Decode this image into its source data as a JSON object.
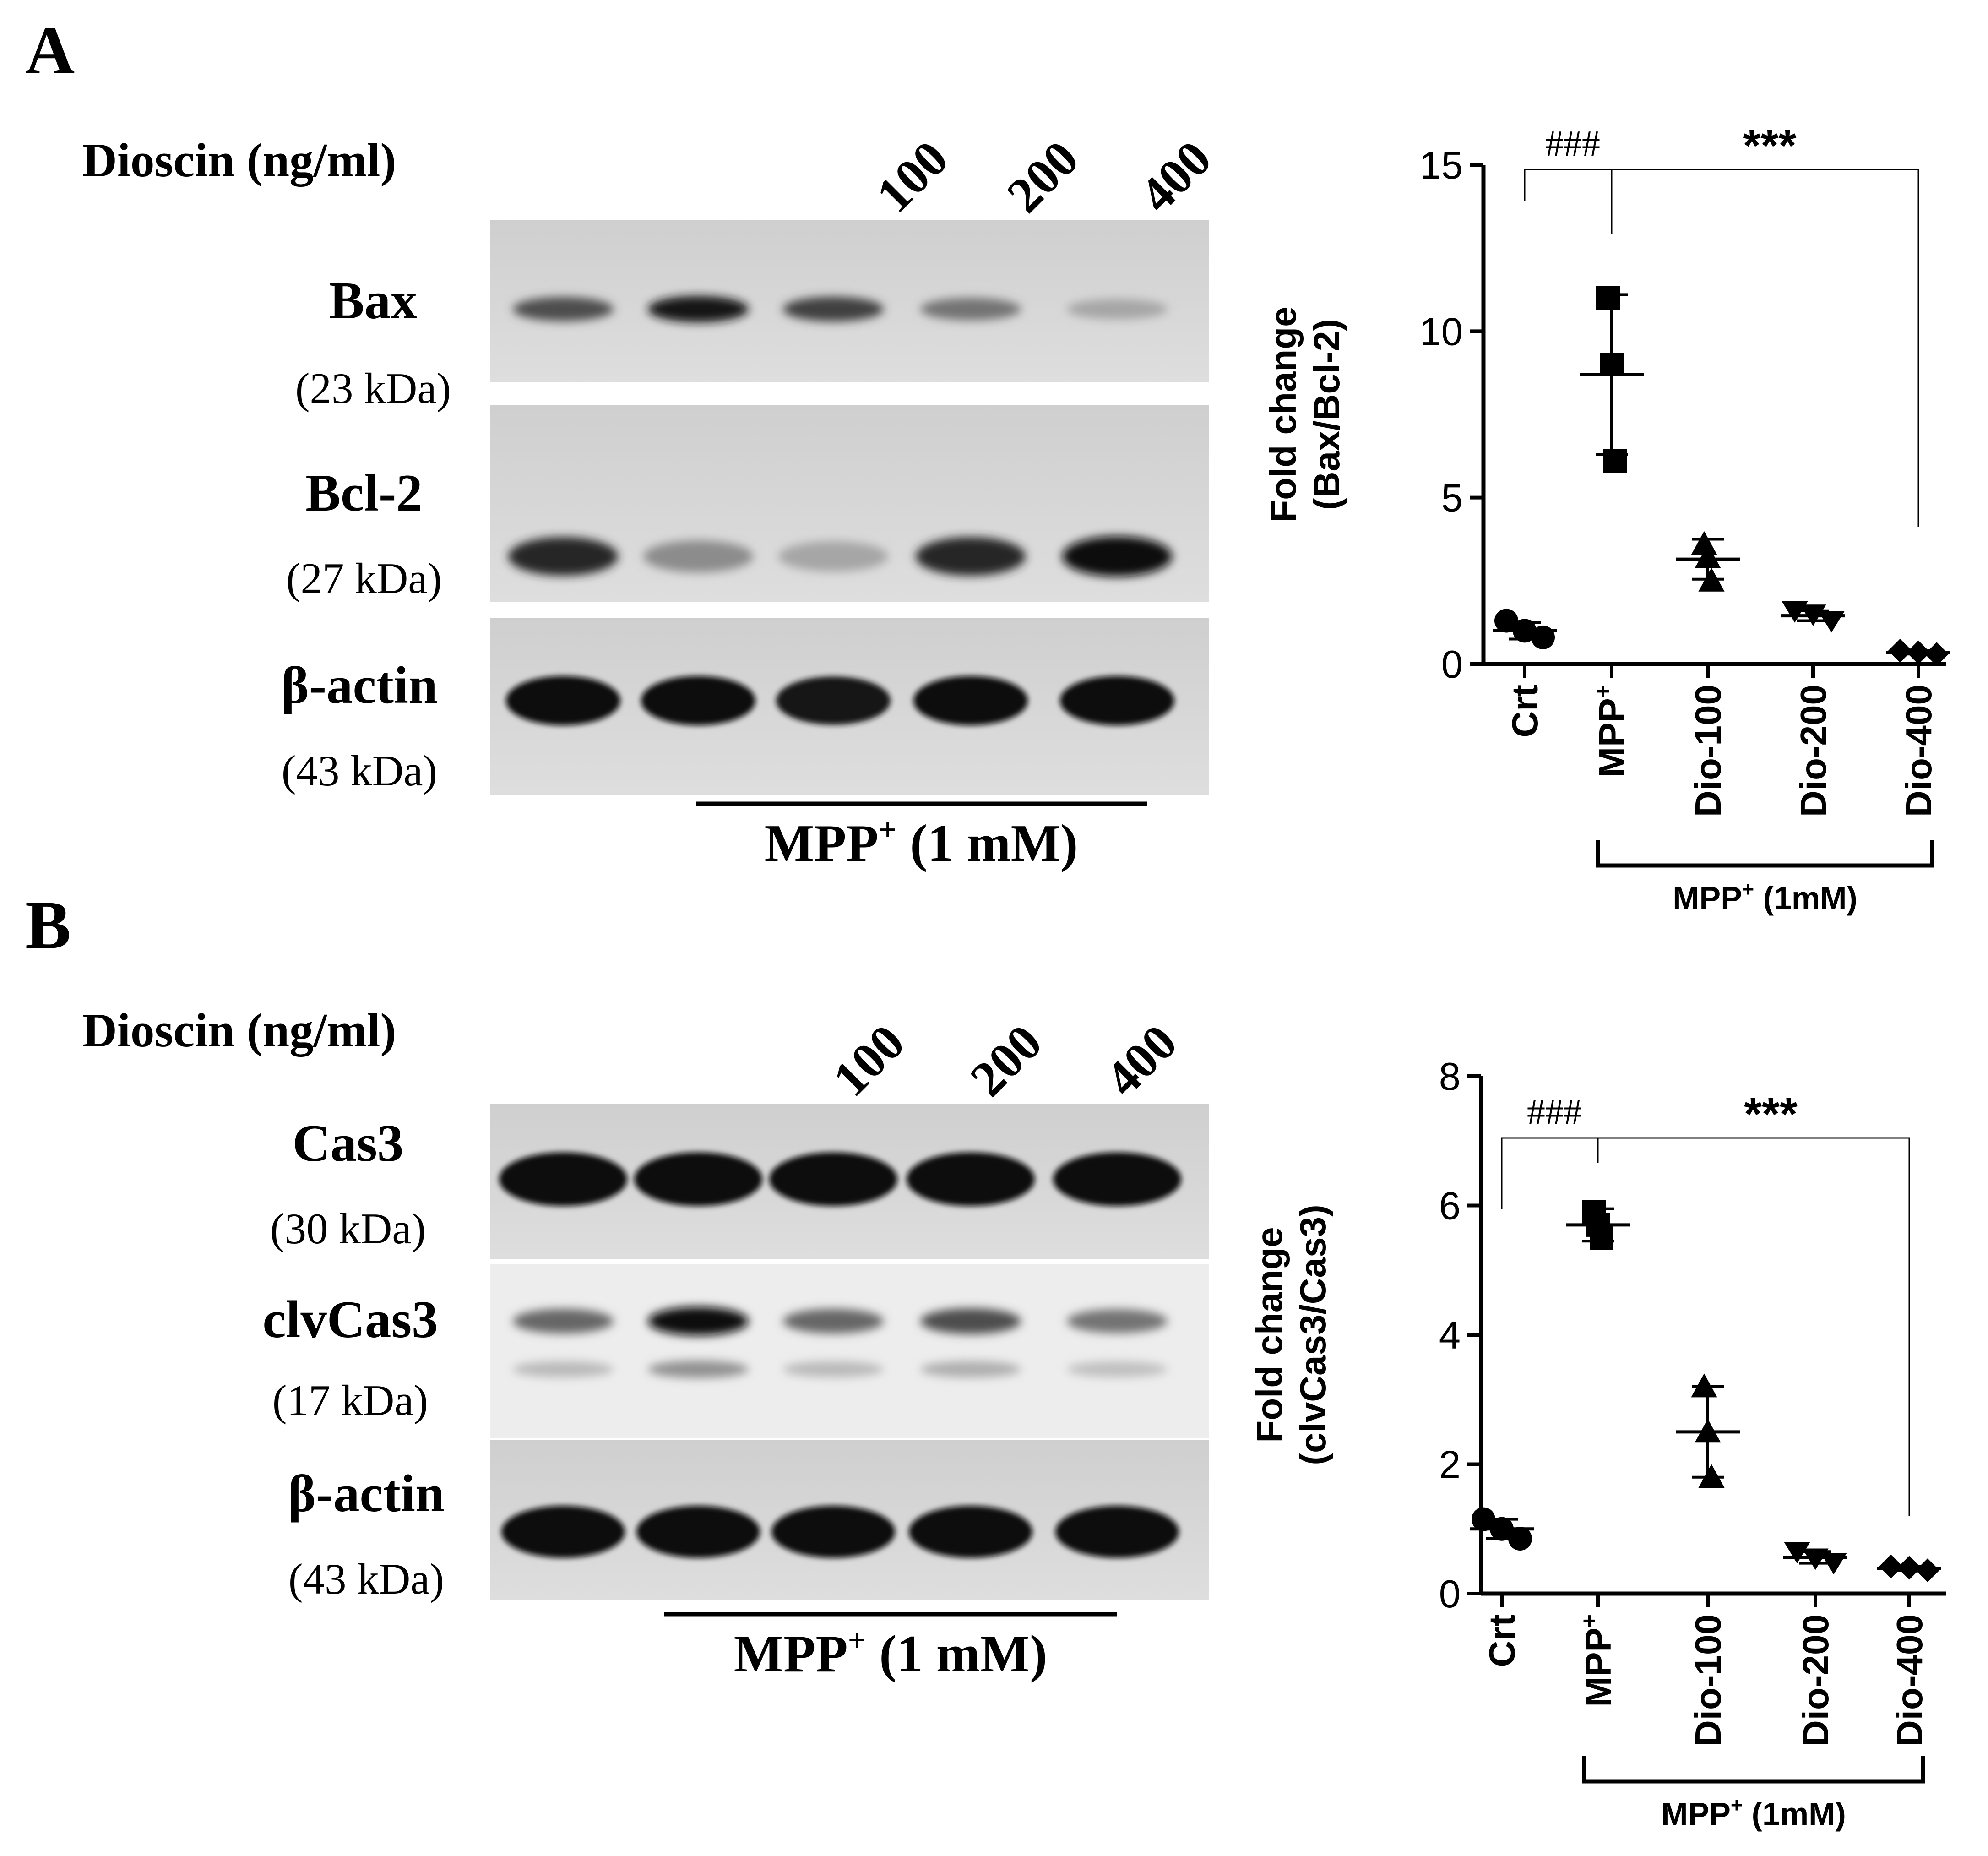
{
  "panel_a": {
    "letter": "A",
    "blot": {
      "dioscin_label": "Dioscin (ng/ml)",
      "doses": [
        "100",
        "200",
        "400"
      ],
      "rows": [
        {
          "protein": "Bax",
          "kda": "(23 kDa)"
        },
        {
          "protein": "Bcl-2",
          "kda": "(27 kDa)"
        },
        {
          "protein": "β-actin",
          "kda": "(43 kDa)"
        }
      ],
      "treatment": {
        "main": "MPP",
        "sup": "+",
        "rest": " (1 mM)"
      },
      "lane_band_intensity": {
        "Bax": [
          0.7,
          0.9,
          0.75,
          0.55,
          0.35
        ],
        "Bcl-2": [
          0.85,
          0.45,
          0.35,
          0.85,
          0.95
        ],
        "β-actin": [
          0.95,
          0.95,
          0.9,
          0.95,
          0.95
        ]
      }
    }
  },
  "panel_b": {
    "letter": "B",
    "blot": {
      "dioscin_label": "Dioscin (ng/ml)",
      "doses": [
        "100",
        "200",
        "400"
      ],
      "rows": [
        {
          "protein": "Cas3",
          "kda": "(30 kDa)"
        },
        {
          "protein": "clvCas3",
          "kda": "(17 kDa)"
        },
        {
          "protein": "β-actin",
          "kda": "(43 kDa)"
        }
      ],
      "treatment": {
        "main": "MPP",
        "sup": "+",
        "rest": " (1 mM)"
      },
      "lane_band_intensity": {
        "Cas3": [
          0.95,
          0.95,
          0.95,
          0.95,
          0.95
        ],
        "clvCas3": [
          0.6,
          0.95,
          0.6,
          0.7,
          0.55
        ],
        "β-actin": [
          0.95,
          0.95,
          0.95,
          0.95,
          0.95
        ]
      }
    }
  },
  "chart_data": [
    {
      "type": "scatter",
      "panel": "A",
      "categories": [
        "Crt",
        "MPP+",
        "Dio-100",
        "Dio-200",
        "Dio-400"
      ],
      "category_labels": [
        {
          "main": "Crt",
          "sup": ""
        },
        {
          "main": "MPP",
          "sup": "+"
        },
        {
          "main": "Dio-100",
          "sup": ""
        },
        {
          "main": "Dio-200",
          "sup": ""
        },
        {
          "main": "Dio-400",
          "sup": ""
        }
      ],
      "ylabel_line1": "Fold change",
      "ylabel_line2": "(Bax/Bcl-2)",
      "ylim": [
        0,
        15
      ],
      "yticks": [
        "0",
        "5",
        "10",
        "15"
      ],
      "group_bracket": {
        "main": "MPP",
        "sup": "+",
        "rest": " (1mM)"
      },
      "significance": {
        "hash": "###",
        "stars": "***"
      },
      "points": [
        {
          "category": "Crt",
          "marker": "circle",
          "values": [
            1.3,
            1.0,
            0.8
          ]
        },
        {
          "category": "MPP+",
          "marker": "square",
          "values": [
            11.0,
            9.0,
            6.1
          ]
        },
        {
          "category": "Dio-100",
          "marker": "triangle-up",
          "values": [
            3.6,
            3.2,
            2.5
          ]
        },
        {
          "category": "Dio-200",
          "marker": "triangle-down",
          "values": [
            1.6,
            1.5,
            1.3
          ]
        },
        {
          "category": "Dio-400",
          "marker": "diamond",
          "values": [
            0.4,
            0.35,
            0.3
          ]
        }
      ],
      "mean_sd": [
        {
          "category": "Crt",
          "mean": 1.0,
          "sd": 0.25
        },
        {
          "category": "MPP+",
          "mean": 8.7,
          "sd": 2.4
        },
        {
          "category": "Dio-100",
          "mean": 3.15,
          "sd": 0.6
        },
        {
          "category": "Dio-200",
          "mean": 1.45,
          "sd": 0.15
        },
        {
          "category": "Dio-400",
          "mean": 0.35,
          "sd": 0.05
        }
      ],
      "grid": false
    },
    {
      "type": "scatter",
      "panel": "B",
      "categories": [
        "Crt",
        "MPP+",
        "Dio-100",
        "Dio-200",
        "Dio-400"
      ],
      "category_labels": [
        {
          "main": "Crt",
          "sup": ""
        },
        {
          "main": "MPP",
          "sup": "+"
        },
        {
          "main": "Dio-100",
          "sup": ""
        },
        {
          "main": "Dio-200",
          "sup": ""
        },
        {
          "main": "Dio-400",
          "sup": ""
        }
      ],
      "ylabel_line1": "Fold change",
      "ylabel_line2": "(clvCas3/Cas3)",
      "ylim": [
        0,
        8
      ],
      "yticks": [
        "0",
        "2",
        "4",
        "6",
        "8"
      ],
      "group_bracket": {
        "main": "MPP",
        "sup": "+",
        "rest": " (1mM)"
      },
      "significance": {
        "hash": "###",
        "stars": "***"
      },
      "points": [
        {
          "category": "Crt",
          "marker": "circle",
          "values": [
            1.15,
            1.0,
            0.85
          ]
        },
        {
          "category": "MPP+",
          "marker": "square",
          "values": [
            5.9,
            5.7,
            5.5
          ]
        },
        {
          "category": "Dio-100",
          "marker": "triangle-up",
          "values": [
            3.2,
            2.5,
            1.8
          ]
        },
        {
          "category": "Dio-200",
          "marker": "triangle-down",
          "values": [
            0.65,
            0.55,
            0.48
          ]
        },
        {
          "category": "Dio-400",
          "marker": "diamond",
          "values": [
            0.42,
            0.4,
            0.36
          ]
        }
      ],
      "mean_sd": [
        {
          "category": "Crt",
          "mean": 1.0,
          "sd": 0.15
        },
        {
          "category": "MPP+",
          "mean": 5.7,
          "sd": 0.25
        },
        {
          "category": "Dio-100",
          "mean": 2.5,
          "sd": 0.7
        },
        {
          "category": "Dio-200",
          "mean": 0.56,
          "sd": 0.09
        },
        {
          "category": "Dio-400",
          "mean": 0.39,
          "sd": 0.03
        }
      ],
      "grid": false
    }
  ]
}
